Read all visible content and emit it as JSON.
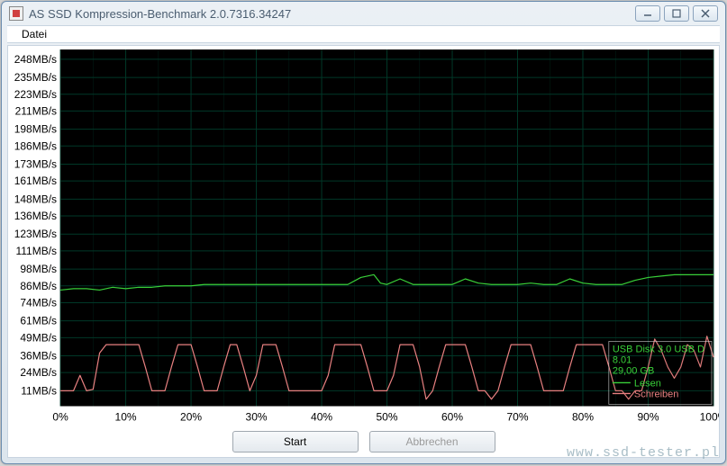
{
  "window": {
    "title": "AS SSD Kompression-Benchmark 2.0.7316.34247",
    "menu": {
      "file": "Datei"
    },
    "buttons": {
      "start": "Start",
      "cancel": "Abbrechen"
    }
  },
  "watermark": "www.ssd-tester.pl",
  "chart": {
    "type": "line",
    "background_color": "#000000",
    "grid_color": "#003828",
    "axis_text_color": "#000000",
    "label_fontsize": 12,
    "xlim": [
      0,
      100
    ],
    "ylim": [
      0,
      255
    ],
    "xtick_step": 10,
    "xtick_labels": [
      "0%",
      "10%",
      "20%",
      "30%",
      "40%",
      "50%",
      "60%",
      "70%",
      "80%",
      "90%",
      "100%"
    ],
    "ytick_values": [
      11,
      24,
      36,
      49,
      61,
      74,
      86,
      98,
      111,
      123,
      136,
      148,
      161,
      173,
      186,
      198,
      211,
      223,
      235,
      248
    ],
    "ytick_labels": [
      "11MB/s",
      "24MB/s",
      "36MB/s",
      "49MB/s",
      "61MB/s",
      "74MB/s",
      "86MB/s",
      "98MB/s",
      "111MB/s",
      "123MB/s",
      "136MB/s",
      "148MB/s",
      "161MB/s",
      "173MB/s",
      "186MB/s",
      "198MB/s",
      "211MB/s",
      "223MB/s",
      "235MB/s",
      "248MB/s"
    ],
    "series": {
      "read": {
        "label": "Lesen",
        "color": "#39d039",
        "line_width": 1.2,
        "data": [
          [
            0,
            83
          ],
          [
            2,
            84
          ],
          [
            4,
            84
          ],
          [
            6,
            83
          ],
          [
            8,
            85
          ],
          [
            10,
            84
          ],
          [
            12,
            85
          ],
          [
            14,
            85
          ],
          [
            16,
            86
          ],
          [
            18,
            86
          ],
          [
            20,
            86
          ],
          [
            22,
            87
          ],
          [
            24,
            87
          ],
          [
            26,
            87
          ],
          [
            28,
            87
          ],
          [
            30,
            87
          ],
          [
            32,
            87
          ],
          [
            34,
            87
          ],
          [
            36,
            87
          ],
          [
            38,
            87
          ],
          [
            40,
            87
          ],
          [
            42,
            87
          ],
          [
            44,
            87
          ],
          [
            46,
            92
          ],
          [
            48,
            94
          ],
          [
            49,
            88
          ],
          [
            50,
            87
          ],
          [
            52,
            91
          ],
          [
            54,
            87
          ],
          [
            56,
            87
          ],
          [
            58,
            87
          ],
          [
            60,
            87
          ],
          [
            62,
            91
          ],
          [
            64,
            88
          ],
          [
            66,
            87
          ],
          [
            68,
            87
          ],
          [
            70,
            87
          ],
          [
            72,
            88
          ],
          [
            74,
            87
          ],
          [
            76,
            87
          ],
          [
            78,
            91
          ],
          [
            80,
            88
          ],
          [
            82,
            87
          ],
          [
            84,
            87
          ],
          [
            86,
            87
          ],
          [
            88,
            90
          ],
          [
            90,
            92
          ],
          [
            92,
            93
          ],
          [
            94,
            94
          ],
          [
            96,
            94
          ],
          [
            98,
            94
          ],
          [
            100,
            94
          ]
        ]
      },
      "write": {
        "label": "Schreiben",
        "color": "#e88080",
        "line_width": 1.2,
        "data": [
          [
            0,
            11
          ],
          [
            2,
            11
          ],
          [
            3,
            22
          ],
          [
            4,
            11
          ],
          [
            5,
            12
          ],
          [
            6,
            38
          ],
          [
            7,
            44
          ],
          [
            8,
            44
          ],
          [
            9,
            44
          ],
          [
            10,
            44
          ],
          [
            11,
            44
          ],
          [
            12,
            44
          ],
          [
            13,
            28
          ],
          [
            14,
            11
          ],
          [
            15,
            11
          ],
          [
            16,
            11
          ],
          [
            17,
            28
          ],
          [
            18,
            44
          ],
          [
            19,
            44
          ],
          [
            20,
            44
          ],
          [
            21,
            28
          ],
          [
            22,
            11
          ],
          [
            23,
            11
          ],
          [
            24,
            11
          ],
          [
            25,
            28
          ],
          [
            26,
            44
          ],
          [
            27,
            44
          ],
          [
            28,
            28
          ],
          [
            29,
            11
          ],
          [
            30,
            22
          ],
          [
            31,
            44
          ],
          [
            32,
            44
          ],
          [
            33,
            44
          ],
          [
            34,
            28
          ],
          [
            35,
            11
          ],
          [
            36,
            11
          ],
          [
            37,
            11
          ],
          [
            38,
            11
          ],
          [
            39,
            11
          ],
          [
            40,
            11
          ],
          [
            41,
            22
          ],
          [
            42,
            44
          ],
          [
            43,
            44
          ],
          [
            44,
            44
          ],
          [
            45,
            44
          ],
          [
            46,
            44
          ],
          [
            47,
            28
          ],
          [
            48,
            11
          ],
          [
            49,
            11
          ],
          [
            50,
            11
          ],
          [
            51,
            22
          ],
          [
            52,
            44
          ],
          [
            53,
            44
          ],
          [
            54,
            44
          ],
          [
            55,
            28
          ],
          [
            56,
            5
          ],
          [
            57,
            11
          ],
          [
            58,
            28
          ],
          [
            59,
            44
          ],
          [
            60,
            44
          ],
          [
            61,
            44
          ],
          [
            62,
            44
          ],
          [
            63,
            28
          ],
          [
            64,
            11
          ],
          [
            65,
            11
          ],
          [
            66,
            5
          ],
          [
            67,
            11
          ],
          [
            68,
            28
          ],
          [
            69,
            44
          ],
          [
            70,
            44
          ],
          [
            71,
            44
          ],
          [
            72,
            44
          ],
          [
            73,
            28
          ],
          [
            74,
            11
          ],
          [
            75,
            11
          ],
          [
            76,
            11
          ],
          [
            77,
            11
          ],
          [
            78,
            28
          ],
          [
            79,
            44
          ],
          [
            80,
            44
          ],
          [
            81,
            44
          ],
          [
            82,
            44
          ],
          [
            83,
            44
          ],
          [
            84,
            28
          ],
          [
            85,
            11
          ],
          [
            86,
            11
          ],
          [
            87,
            5
          ],
          [
            88,
            11
          ],
          [
            89,
            11
          ],
          [
            90,
            28
          ],
          [
            91,
            48
          ],
          [
            92,
            40
          ],
          [
            93,
            28
          ],
          [
            94,
            20
          ],
          [
            95,
            28
          ],
          [
            96,
            44
          ],
          [
            97,
            40
          ],
          [
            98,
            28
          ],
          [
            99,
            50
          ],
          [
            100,
            35
          ]
        ]
      }
    },
    "legend": {
      "position": "bottom-right",
      "device_line1": "USB Disk 3.0 USB D",
      "device_line2": "8.01",
      "capacity": "29,00 GB",
      "text_color_device": "#39d039",
      "background": "rgba(0,0,0,0.15)"
    }
  }
}
